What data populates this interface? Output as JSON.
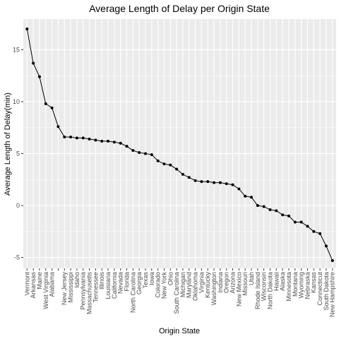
{
  "chart_data": {
    "type": "line",
    "title": "Average Length of Delay per Origin State",
    "x_label": "Origin State",
    "y_label": "Average Length of Delay(min)",
    "categories": [
      "Vermont",
      "Arkansas",
      "Maine",
      "West Virginia",
      "Alabama",
      null,
      "New Jersey",
      "Mississippi",
      "Idaho",
      "Pennsylvania",
      "Massachusetts",
      "Tennessee",
      "Illinois",
      "Louisiana",
      "California",
      "Nevada",
      "Florida",
      "North Carolina",
      "Georgia",
      "Texas",
      "Iowa",
      "Colorado",
      "New York",
      "Ohio",
      "South Carolina",
      "Michigan",
      "Maryland",
      "Oklahoma",
      "Virginia",
      "Kentucky",
      "Washington",
      "Indiana",
      "Oregon",
      "Arizona",
      "New Mexico",
      "Missouri",
      "Utah",
      "Rhode Island",
      "Wisconsin",
      "North Dakota",
      "Hawaii",
      "Alaska",
      "Minnesota",
      "Montana",
      "Wyoming",
      "Nebraska",
      "Kansas",
      "Connecticut",
      "South Dakota",
      "New Hampshire"
    ],
    "values": [
      17,
      13.7,
      12.4,
      9.8,
      9.4,
      7.6,
      6.6,
      6.6,
      6.5,
      6.5,
      6.4,
      6.3,
      6.2,
      6.2,
      6.1,
      6.0,
      5.7,
      5.3,
      5.1,
      5.0,
      4.9,
      4.3,
      4.0,
      3.9,
      3.5,
      3.0,
      2.7,
      2.4,
      2.3,
      2.3,
      2.2,
      2.2,
      2.1,
      2.0,
      1.6,
      0.9,
      0.8,
      0,
      -0.1,
      -0.4,
      -0.5,
      -0.9,
      -1.0,
      -1.6,
      -1.6,
      -2.0,
      -2.5,
      -2.7,
      -3.9,
      -5.3
    ],
    "color": "#000000",
    "ylim": [
      -6.05,
      17.95
    ],
    "yticks": [
      -5,
      0,
      5,
      10,
      15
    ],
    "grid": true
  }
}
